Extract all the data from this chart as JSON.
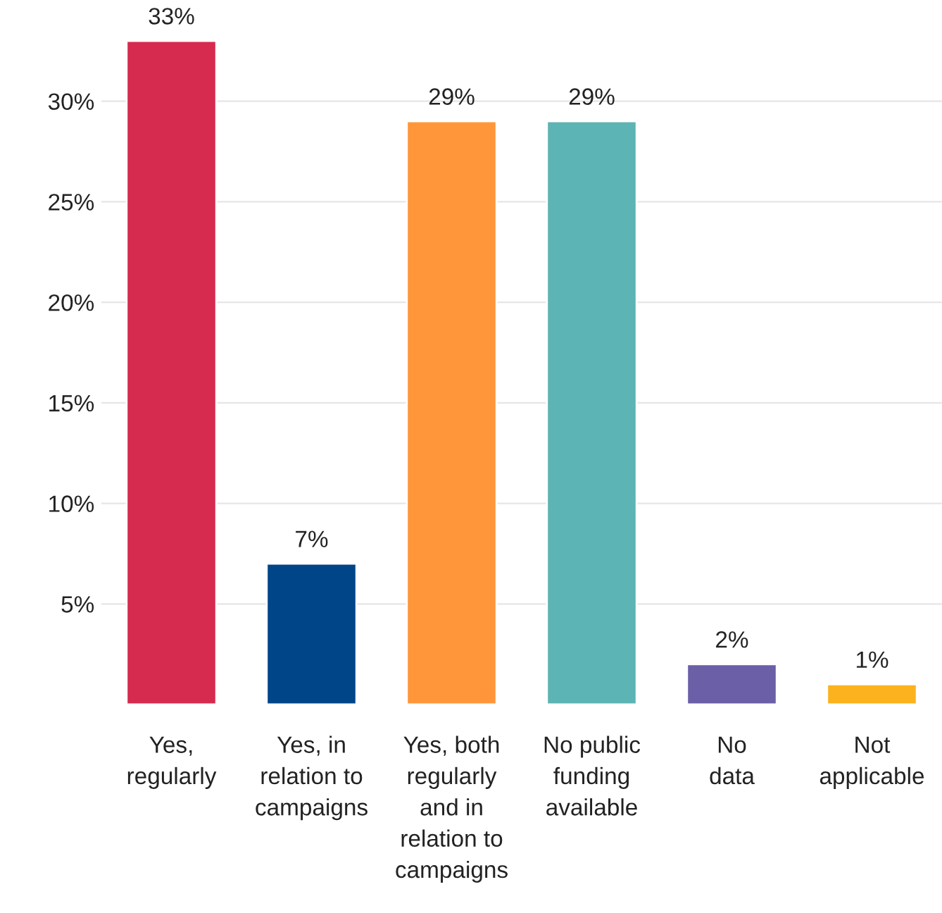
{
  "chart_data": {
    "type": "bar",
    "categories": [
      "Yes,\nregularly",
      "Yes, in\nrelation to\ncampaigns",
      "Yes, both\nregularly\nand in\nrelation to\ncampaigns",
      "No public\nfunding\navailable",
      "No\ndata",
      "Not\napplicable"
    ],
    "values": [
      33,
      7,
      29,
      29,
      2,
      1
    ],
    "value_labels": [
      "33%",
      "7%",
      "29%",
      "29%",
      "2%",
      "1%"
    ],
    "colors": [
      "#d62b4e",
      "#004587",
      "#ff963a",
      "#5db4b4",
      "#6b5fa8",
      "#fcb21e"
    ],
    "ylim": [
      0,
      33
    ],
    "yticks": [
      {
        "value": 5,
        "label": "5%"
      },
      {
        "value": 10,
        "label": "10%"
      },
      {
        "value": 15,
        "label": "15%"
      },
      {
        "value": 20,
        "label": "20%"
      },
      {
        "value": 25,
        "label": "25%"
      },
      {
        "value": 30,
        "label": "30%"
      }
    ],
    "grid": "y",
    "legend": false
  }
}
